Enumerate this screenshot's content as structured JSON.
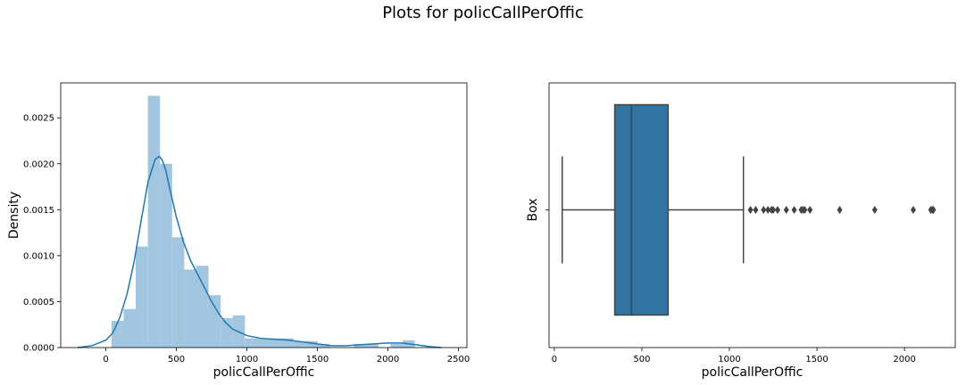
{
  "figure": {
    "title": "Plots for policCallPerOffic"
  },
  "chart_data": [
    {
      "type": "histogram",
      "panel": "left",
      "xlabel": "policCallPerOffic",
      "ylabel": "Density",
      "xlim": [
        -320,
        2560
      ],
      "ylim": [
        0,
        0.00288
      ],
      "xticks": [
        0,
        500,
        1000,
        1500,
        2000,
        2500
      ],
      "yticks": [
        0.0,
        0.0005,
        0.001,
        0.0015,
        0.002,
        0.0025
      ],
      "ytick_labels": [
        "0.0000",
        "0.0005",
        "0.0010",
        "0.0015",
        "0.0020",
        "0.0025"
      ],
      "bar_color": "#a3c6e0",
      "kde_color": "#1f77b4",
      "bins": [
        {
          "x0": 40,
          "x1": 126,
          "density": 0.00029
        },
        {
          "x0": 126,
          "x1": 212,
          "density": 0.00042
        },
        {
          "x0": 212,
          "x1": 298,
          "density": 0.0011
        },
        {
          "x0": 298,
          "x1": 384,
          "density": 0.00274
        },
        {
          "x0": 384,
          "x1": 470,
          "density": 0.002
        },
        {
          "x0": 470,
          "x1": 556,
          "density": 0.0012
        },
        {
          "x0": 556,
          "x1": 642,
          "density": 0.00085
        },
        {
          "x0": 642,
          "x1": 728,
          "density": 0.00089
        },
        {
          "x0": 728,
          "x1": 814,
          "density": 0.00057
        },
        {
          "x0": 814,
          "x1": 900,
          "density": 0.00032
        },
        {
          "x0": 900,
          "x1": 986,
          "density": 0.00035
        },
        {
          "x0": 986,
          "x1": 1072,
          "density": 0.0001
        },
        {
          "x0": 1072,
          "x1": 1158,
          "density": 0.0001
        },
        {
          "x0": 1158,
          "x1": 1244,
          "density": 0.0001
        },
        {
          "x0": 1244,
          "x1": 1330,
          "density": 0.0001
        },
        {
          "x0": 1330,
          "x1": 1416,
          "density": 7e-05
        },
        {
          "x0": 1416,
          "x1": 1502,
          "density": 7e-05
        },
        {
          "x0": 1502,
          "x1": 1588,
          "density": 4e-05
        },
        {
          "x0": 1588,
          "x1": 1674,
          "density": 0.0
        },
        {
          "x0": 1674,
          "x1": 1760,
          "density": 0.0
        },
        {
          "x0": 1760,
          "x1": 1846,
          "density": 4e-05
        },
        {
          "x0": 1846,
          "x1": 1932,
          "density": 4e-05
        },
        {
          "x0": 1932,
          "x1": 2018,
          "density": 0.0
        },
        {
          "x0": 2018,
          "x1": 2104,
          "density": 4e-05
        },
        {
          "x0": 2104,
          "x1": 2190,
          "density": 8e-05
        }
      ],
      "kde": {
        "x": [
          -200,
          -100,
          0,
          50,
          100,
          150,
          200,
          250,
          300,
          350,
          380,
          400,
          425,
          450,
          500,
          550,
          600,
          650,
          700,
          750,
          800,
          850,
          900,
          1000,
          1100,
          1200,
          1300,
          1400,
          1500,
          1600,
          1700,
          1800,
          1900,
          2000,
          2050,
          2100,
          2150,
          2200,
          2300,
          2380
        ],
        "y": [
          0.0,
          2e-05,
          8e-05,
          0.00016,
          0.00033,
          0.00058,
          0.00093,
          0.00138,
          0.00181,
          0.00205,
          0.00208,
          0.00204,
          0.00193,
          0.00175,
          0.00142,
          0.00115,
          0.00095,
          0.0008,
          0.00065,
          0.0005,
          0.00037,
          0.00027,
          0.0002,
          0.00013,
          0.0001,
          9e-05,
          8e-05,
          6e-05,
          4e-05,
          2e-05,
          2e-05,
          3e-05,
          4e-05,
          5e-05,
          5e-05,
          5e-05,
          4e-05,
          3e-05,
          1e-05,
          0.0
        ]
      }
    },
    {
      "type": "box",
      "panel": "right",
      "xlabel": "policCallPerOffic",
      "ylabel": "Box",
      "xlim": [
        -30,
        2290
      ],
      "xticks": [
        0,
        500,
        1000,
        1500,
        2000
      ],
      "box_color": "#3274a1",
      "line_color": "#444444",
      "whisker_low": 45,
      "q1": 345,
      "median": 440,
      "q3": 650,
      "whisker_high": 1080,
      "outliers": [
        1120,
        1150,
        1195,
        1220,
        1240,
        1250,
        1275,
        1325,
        1370,
        1410,
        1420,
        1430,
        1460,
        1630,
        1830,
        2050,
        2150,
        2160,
        2165
      ]
    }
  ]
}
